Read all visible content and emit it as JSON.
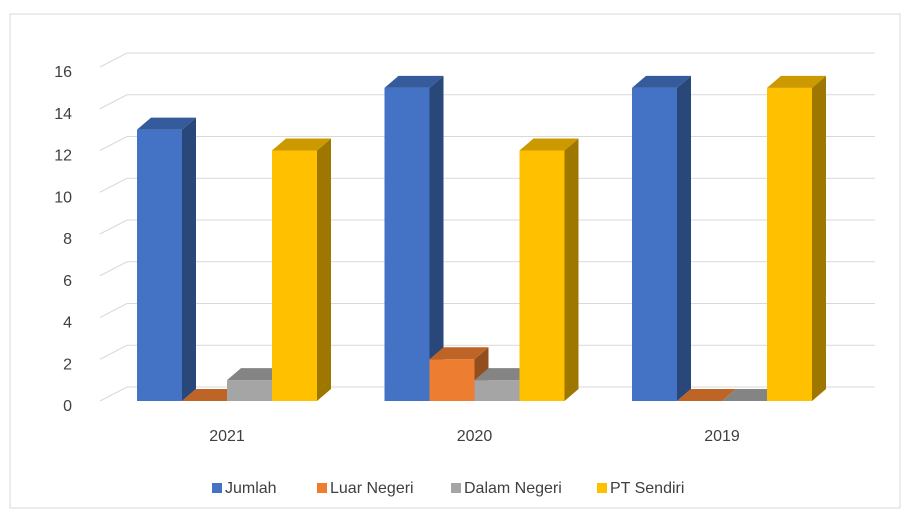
{
  "chart_data": {
    "type": "bar3d",
    "categories": [
      "2021",
      "2020",
      "2019"
    ],
    "series": [
      {
        "name": "Jumlah",
        "color": "#4472c4",
        "values": [
          13,
          15,
          15
        ]
      },
      {
        "name": "Luar Negeri",
        "color": "#ed7d31",
        "values": [
          0,
          2,
          0
        ]
      },
      {
        "name": "Dalam Negeri",
        "color": "#a5a5a5",
        "values": [
          1,
          1,
          0
        ]
      },
      {
        "name": "PT Sendiri",
        "color": "#ffc000",
        "values": [
          12,
          12,
          15
        ]
      }
    ],
    "ylim": [
      0,
      16
    ],
    "yticks": [
      0,
      2,
      4,
      6,
      8,
      10,
      12,
      14,
      16
    ],
    "grid": true,
    "legend": "bottom"
  }
}
